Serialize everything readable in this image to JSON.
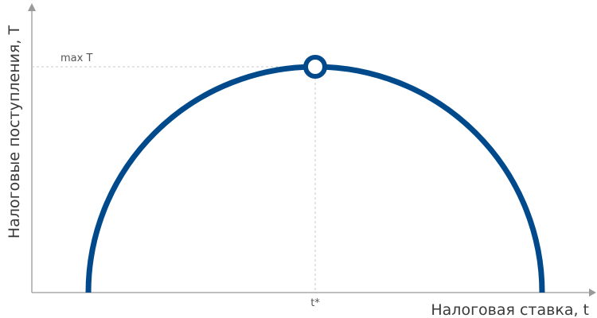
{
  "chart_data": {
    "type": "line",
    "xlabel": "Налоговая ставка, t",
    "ylabel": "Налоговые поступления, T",
    "annotations": {
      "peak_y_label": "max T",
      "peak_x_label": "t*"
    },
    "curve": "half-ellipse (Laffer curve)",
    "colors": {
      "curve": "#004a8c",
      "axis": "#999999",
      "guide": "#c8c8c8"
    }
  }
}
